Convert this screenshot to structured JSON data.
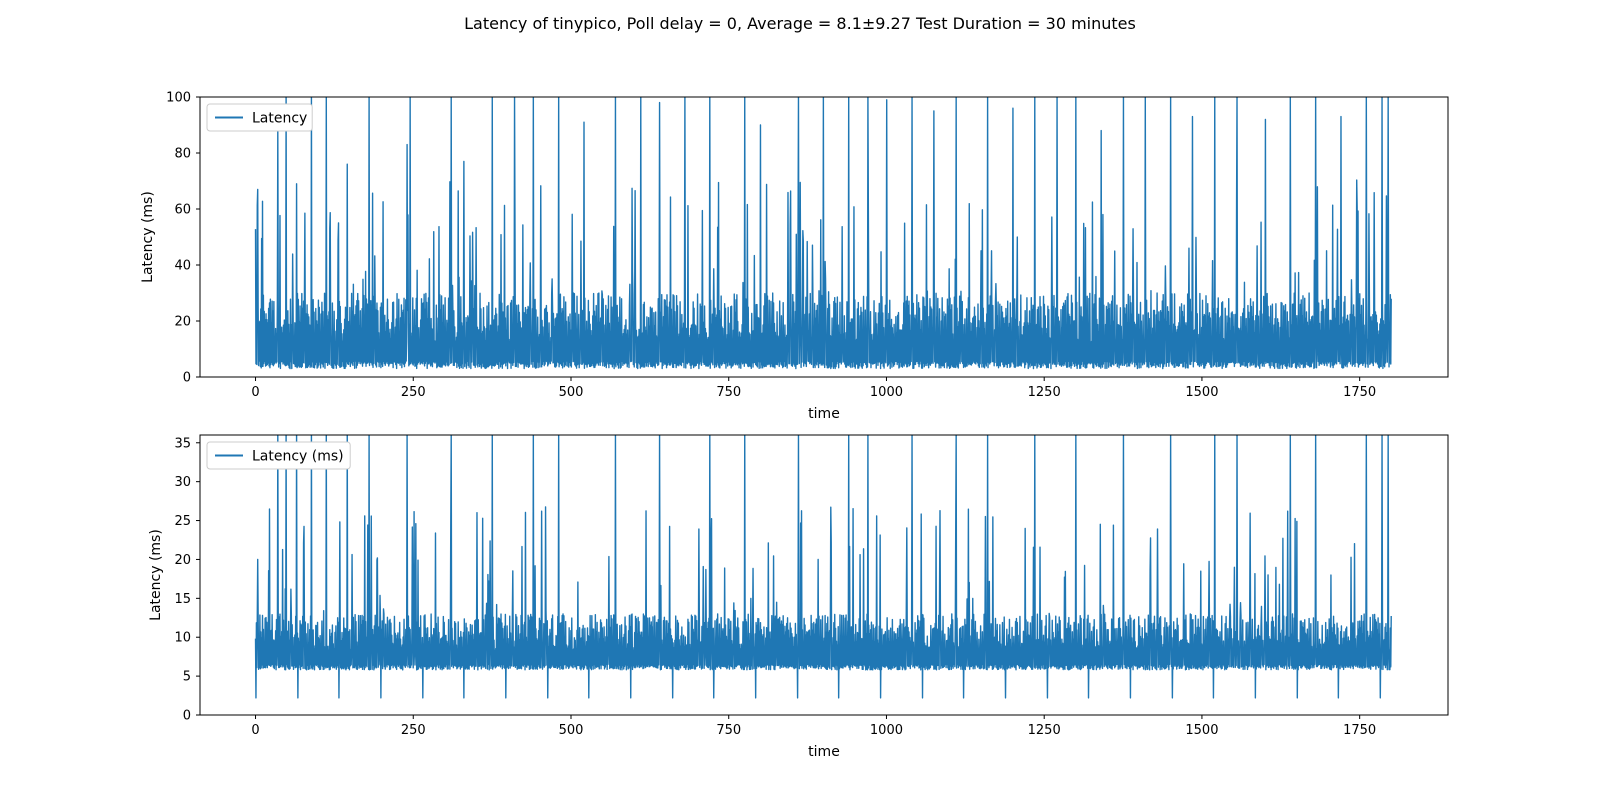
{
  "figure": {
    "title": "Latency of tinypico, Poll delay = 0, Average = 8.1±9.27 Test Duration = 30 minutes"
  },
  "colors": {
    "series": "#1f77b4",
    "axes": "#000000",
    "background": "#ffffff"
  },
  "chart_data": [
    {
      "type": "line",
      "xlabel": "time",
      "ylabel": "Latency (ms)",
      "xlim": [
        -88,
        1890
      ],
      "ylim": [
        0,
        100
      ],
      "xticks": [
        0,
        250,
        500,
        750,
        1000,
        1250,
        1500,
        1750
      ],
      "xtick_labels": [
        "0",
        "250",
        "500",
        "750",
        "1000",
        "1250",
        "1500",
        "1750"
      ],
      "yticks": [
        0,
        20,
        40,
        60,
        80,
        100
      ],
      "ytick_labels": [
        "0",
        "20",
        "40",
        "60",
        "80",
        "100"
      ],
      "grid": false,
      "legend": {
        "position": "top-left",
        "entries": [
          "Latency"
        ]
      },
      "series": [
        {
          "name": "Latency",
          "x": [
            0,
            1800
          ],
          "baseline": 3,
          "typical_band": [
            3,
            30
          ],
          "spikes": [
            {
              "x": 3,
              "y": 67
            },
            {
              "x": 35,
              "y": 88
            },
            {
              "x": 48,
              "y": 100
            },
            {
              "x": 65,
              "y": 69
            },
            {
              "x": 88,
              "y": 100
            },
            {
              "x": 112,
              "y": 100
            },
            {
              "x": 145,
              "y": 76
            },
            {
              "x": 180,
              "y": 100
            },
            {
              "x": 240,
              "y": 83
            },
            {
              "x": 245,
              "y": 100
            },
            {
              "x": 310,
              "y": 100
            },
            {
              "x": 330,
              "y": 77
            },
            {
              "x": 375,
              "y": 100
            },
            {
              "x": 410,
              "y": 100
            },
            {
              "x": 440,
              "y": 100
            },
            {
              "x": 480,
              "y": 100
            },
            {
              "x": 520,
              "y": 91
            },
            {
              "x": 570,
              "y": 100
            },
            {
              "x": 610,
              "y": 100
            },
            {
              "x": 640,
              "y": 98
            },
            {
              "x": 680,
              "y": 100
            },
            {
              "x": 720,
              "y": 100
            },
            {
              "x": 775,
              "y": 100
            },
            {
              "x": 800,
              "y": 90
            },
            {
              "x": 860,
              "y": 100
            },
            {
              "x": 900,
              "y": 100
            },
            {
              "x": 940,
              "y": 100
            },
            {
              "x": 970,
              "y": 100
            },
            {
              "x": 1000,
              "y": 99
            },
            {
              "x": 1040,
              "y": 100
            },
            {
              "x": 1075,
              "y": 95
            },
            {
              "x": 1110,
              "y": 100
            },
            {
              "x": 1160,
              "y": 100
            },
            {
              "x": 1200,
              "y": 96
            },
            {
              "x": 1235,
              "y": 100
            },
            {
              "x": 1270,
              "y": 100
            },
            {
              "x": 1300,
              "y": 100
            },
            {
              "x": 1340,
              "y": 88
            },
            {
              "x": 1375,
              "y": 100
            },
            {
              "x": 1410,
              "y": 100
            },
            {
              "x": 1450,
              "y": 100
            },
            {
              "x": 1485,
              "y": 93
            },
            {
              "x": 1520,
              "y": 100
            },
            {
              "x": 1555,
              "y": 100
            },
            {
              "x": 1600,
              "y": 92
            },
            {
              "x": 1640,
              "y": 100
            },
            {
              "x": 1680,
              "y": 100
            },
            {
              "x": 1720,
              "y": 93
            },
            {
              "x": 1760,
              "y": 100
            },
            {
              "x": 1785,
              "y": 100
            },
            {
              "x": 1795,
              "y": 100
            }
          ]
        }
      ]
    },
    {
      "type": "line",
      "xlabel": "time",
      "ylabel": "Latency (ms)",
      "xlim": [
        -88,
        1890
      ],
      "ylim": [
        0,
        36
      ],
      "xticks": [
        0,
        250,
        500,
        750,
        1000,
        1250,
        1500,
        1750
      ],
      "xtick_labels": [
        "0",
        "250",
        "500",
        "750",
        "1000",
        "1250",
        "1500",
        "1750"
      ],
      "yticks": [
        0,
        5,
        10,
        15,
        20,
        25,
        30,
        35
      ],
      "ytick_labels": [
        "0",
        "5",
        "10",
        "15",
        "20",
        "25",
        "30",
        "35"
      ],
      "grid": false,
      "legend": {
        "position": "top-left",
        "entries": [
          "Latency (ms)"
        ]
      },
      "series": [
        {
          "name": "Latency (ms)",
          "x": [
            0,
            1800
          ],
          "baseline": 5.8,
          "typical_band": [
            5.8,
            13
          ],
          "periodic_dips": {
            "period": 66,
            "min": 2.2
          },
          "spikes": [
            {
              "x": 3,
              "y": 20
            },
            {
              "x": 35,
              "y": 36
            },
            {
              "x": 48,
              "y": 36
            },
            {
              "x": 65,
              "y": 36
            },
            {
              "x": 88,
              "y": 36
            },
            {
              "x": 112,
              "y": 36
            },
            {
              "x": 145,
              "y": 36
            },
            {
              "x": 180,
              "y": 36
            },
            {
              "x": 240,
              "y": 36
            },
            {
              "x": 310,
              "y": 36
            },
            {
              "x": 375,
              "y": 36
            },
            {
              "x": 440,
              "y": 36
            },
            {
              "x": 480,
              "y": 36
            },
            {
              "x": 570,
              "y": 36
            },
            {
              "x": 640,
              "y": 36
            },
            {
              "x": 720,
              "y": 36
            },
            {
              "x": 775,
              "y": 36
            },
            {
              "x": 860,
              "y": 36
            },
            {
              "x": 940,
              "y": 36
            },
            {
              "x": 970,
              "y": 36
            },
            {
              "x": 1040,
              "y": 36
            },
            {
              "x": 1110,
              "y": 36
            },
            {
              "x": 1160,
              "y": 36
            },
            {
              "x": 1235,
              "y": 36
            },
            {
              "x": 1300,
              "y": 36
            },
            {
              "x": 1375,
              "y": 36
            },
            {
              "x": 1450,
              "y": 36
            },
            {
              "x": 1520,
              "y": 36
            },
            {
              "x": 1555,
              "y": 36
            },
            {
              "x": 1640,
              "y": 36
            },
            {
              "x": 1680,
              "y": 36
            },
            {
              "x": 1760,
              "y": 36
            },
            {
              "x": 1785,
              "y": 36
            },
            {
              "x": 1795,
              "y": 36
            }
          ]
        }
      ]
    }
  ]
}
